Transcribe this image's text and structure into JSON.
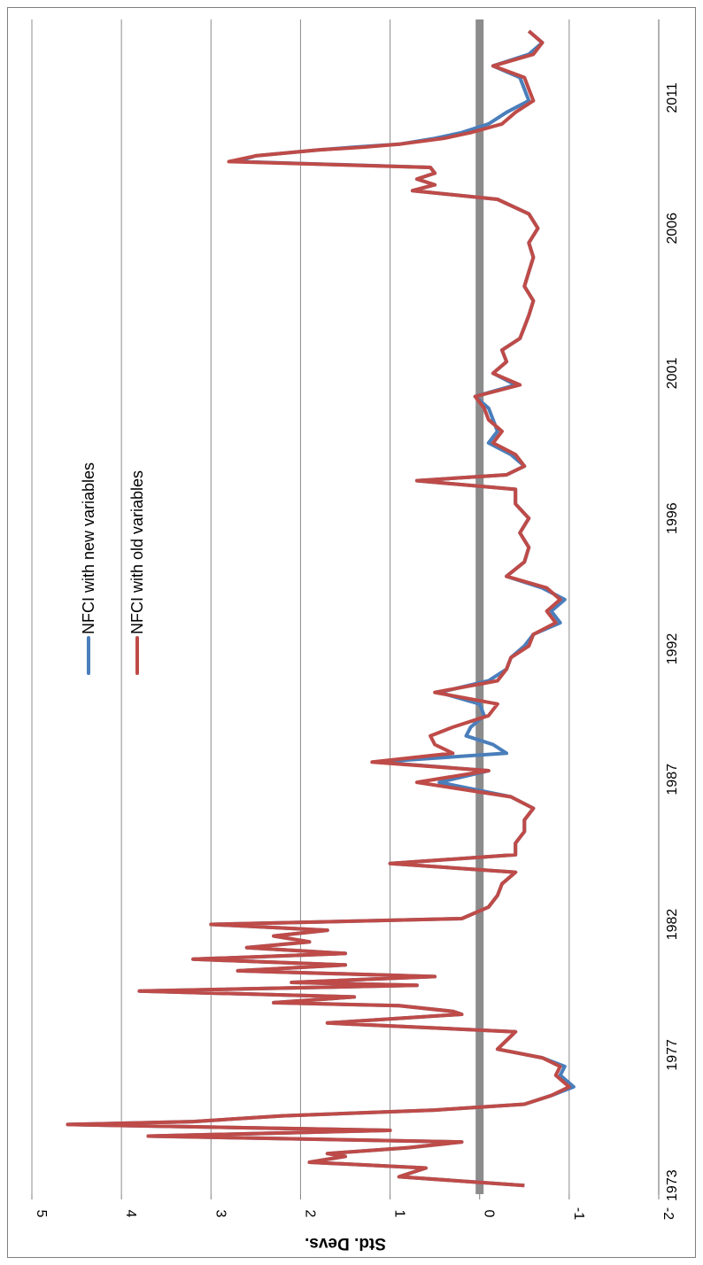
{
  "chart_data": {
    "type": "line",
    "orientation": "rotated-90-cw",
    "title": "",
    "ylabel": "Std. Devs.",
    "xlabel": "",
    "ylim": [
      -2,
      5
    ],
    "y_ticks": [
      "5",
      "4",
      "3",
      "2",
      "1",
      "0",
      "-1",
      "-2"
    ],
    "x_tick_labels": [
      "1973",
      "1977",
      "1982",
      "1987",
      "1992",
      "1996",
      "2001",
      "2006",
      "2011"
    ],
    "x_tick_years": [
      1973,
      1977.5,
      1982,
      1987,
      1991.5,
      1996,
      2001,
      2006,
      2010.5
    ],
    "grid": true,
    "legend_position": "top-left",
    "series": [
      {
        "name": "NFCI with new variables",
        "color": "#4a7ebb",
        "x": [
          1973.0,
          1973.3,
          1973.6,
          1973.8,
          1974.0,
          1974.1,
          1974.3,
          1974.5,
          1974.7,
          1974.9,
          1975.1,
          1975.2,
          1975.4,
          1975.6,
          1975.8,
          1976.1,
          1976.4,
          1976.8,
          1977.1,
          1977.4,
          1977.7,
          1978.0,
          1978.3,
          1978.6,
          1978.9,
          1979.0,
          1979.2,
          1979.3,
          1979.5,
          1979.7,
          1979.9,
          1980.0,
          1980.2,
          1980.4,
          1980.6,
          1980.8,
          1981.0,
          1981.2,
          1981.4,
          1981.6,
          1981.8,
          1982.0,
          1982.2,
          1982.6,
          1983.0,
          1983.4,
          1983.8,
          1984.1,
          1984.4,
          1984.8,
          1985.2,
          1985.6,
          1986.0,
          1986.4,
          1986.9,
          1987.3,
          1987.6,
          1987.9,
          1988.2,
          1988.5,
          1988.8,
          1989.2,
          1989.6,
          1990.0,
          1990.4,
          1990.8,
          1991.2,
          1991.6,
          1992.0,
          1992.4,
          1992.8,
          1993.2,
          1993.6,
          1994.0,
          1994.5,
          1995.0,
          1995.5,
          1996.0,
          1996.5,
          1997.0,
          1997.3,
          1997.5,
          1997.8,
          1998.2,
          1998.6,
          1999.0,
          1999.4,
          1999.8,
          2000.2,
          2000.6,
          2001.0,
          2001.4,
          2001.8,
          2002.2,
          2002.6,
          2003.0,
          2003.5,
          2004.0,
          2004.5,
          2005.0,
          2005.5,
          2006.0,
          2006.5,
          2007.0,
          2007.3,
          2007.5,
          2007.7,
          2007.9,
          2008.1,
          2008.3,
          2008.5,
          2008.7,
          2008.8,
          2008.9,
          2009.1,
          2009.3,
          2009.6,
          2010.0,
          2010.4,
          2010.8,
          2011.2,
          2011.6,
          2012.0,
          2012.4,
          2012.8
        ],
        "values": [
          -0.5,
          0.9,
          0.6,
          1.9,
          1.5,
          1.7,
          0.8,
          0.2,
          3.7,
          1.0,
          4.6,
          3.2,
          2.2,
          0.5,
          -0.5,
          -0.8,
          -1.05,
          -0.9,
          -0.95,
          -0.7,
          -0.2,
          -0.3,
          -0.4,
          1.7,
          0.2,
          0.3,
          0.9,
          2.3,
          1.4,
          3.8,
          0.7,
          2.1,
          0.5,
          2.7,
          1.5,
          3.2,
          1.5,
          2.6,
          1.9,
          2.3,
          1.7,
          3.0,
          0.2,
          -0.1,
          -0.2,
          -0.25,
          -0.4,
          1.0,
          -0.4,
          -0.4,
          -0.5,
          -0.5,
          -0.6,
          -0.35,
          0.45,
          -0.1,
          1.15,
          -0.3,
          -0.15,
          0.15,
          0.1,
          -0.05,
          0.0,
          0.45,
          -0.1,
          -0.3,
          -0.35,
          -0.5,
          -0.6,
          -0.9,
          -0.8,
          -0.95,
          -0.7,
          -0.3,
          -0.5,
          -0.55,
          -0.45,
          -0.55,
          -0.4,
          -0.4,
          0.7,
          -0.3,
          -0.5,
          -0.35,
          -0.1,
          -0.2,
          -0.15,
          -0.1,
          0.05,
          -0.4,
          -0.15,
          -0.3,
          -0.25,
          -0.45,
          -0.5,
          -0.55,
          -0.6,
          -0.5,
          -0.55,
          -0.6,
          -0.55,
          -0.65,
          -0.55,
          -0.2,
          0.75,
          0.5,
          0.7,
          0.5,
          0.55,
          2.7,
          2.5,
          1.8,
          1.4,
          0.9,
          0.5,
          0.2,
          -0.1,
          -0.3,
          -0.55,
          -0.5,
          -0.45,
          -0.15,
          -0.55,
          -0.7,
          -0.55
        ]
      },
      {
        "name": "NFCI with old variables",
        "color": "#be4b48",
        "x": [
          1973.0,
          1973.3,
          1973.6,
          1973.8,
          1974.0,
          1974.1,
          1974.3,
          1974.5,
          1974.7,
          1974.9,
          1975.1,
          1975.2,
          1975.4,
          1975.6,
          1975.8,
          1976.1,
          1976.4,
          1976.8,
          1977.1,
          1977.4,
          1977.7,
          1978.0,
          1978.3,
          1978.6,
          1978.9,
          1979.0,
          1979.2,
          1979.3,
          1979.5,
          1979.7,
          1979.9,
          1980.0,
          1980.2,
          1980.4,
          1980.6,
          1980.8,
          1981.0,
          1981.2,
          1981.4,
          1981.6,
          1981.8,
          1982.0,
          1982.2,
          1982.6,
          1983.0,
          1983.4,
          1983.8,
          1984.1,
          1984.4,
          1984.8,
          1985.2,
          1985.6,
          1986.0,
          1986.4,
          1986.9,
          1987.3,
          1987.6,
          1987.9,
          1988.2,
          1988.5,
          1988.8,
          1989.2,
          1989.6,
          1990.0,
          1990.4,
          1990.8,
          1991.2,
          1991.6,
          1992.0,
          1992.4,
          1992.8,
          1993.2,
          1993.6,
          1994.0,
          1994.5,
          1995.0,
          1995.5,
          1996.0,
          1996.5,
          1997.0,
          1997.3,
          1997.5,
          1997.8,
          1998.2,
          1998.6,
          1999.0,
          1999.4,
          1999.8,
          2000.2,
          2000.6,
          2001.0,
          2001.4,
          2001.8,
          2002.2,
          2002.6,
          2003.0,
          2003.5,
          2004.0,
          2004.5,
          2005.0,
          2005.5,
          2006.0,
          2006.5,
          2007.0,
          2007.3,
          2007.5,
          2007.7,
          2007.9,
          2008.1,
          2008.3,
          2008.5,
          2008.7,
          2008.8,
          2008.9,
          2009.1,
          2009.3,
          2009.6,
          2010.0,
          2010.4,
          2010.8,
          2011.2,
          2011.6,
          2012.0,
          2012.4,
          2012.8
        ],
        "values": [
          -0.5,
          0.9,
          0.6,
          1.9,
          1.5,
          1.7,
          0.8,
          0.2,
          3.7,
          1.0,
          4.6,
          3.2,
          2.2,
          0.5,
          -0.5,
          -0.8,
          -1.0,
          -0.85,
          -0.9,
          -0.7,
          -0.2,
          -0.3,
          -0.4,
          1.7,
          0.2,
          0.3,
          0.9,
          2.3,
          1.4,
          3.8,
          0.7,
          2.1,
          0.5,
          2.7,
          1.5,
          3.2,
          1.5,
          2.6,
          1.9,
          2.3,
          1.7,
          3.0,
          0.2,
          -0.1,
          -0.2,
          -0.25,
          -0.4,
          1.0,
          -0.4,
          -0.4,
          -0.5,
          -0.5,
          -0.6,
          -0.35,
          0.7,
          -0.1,
          1.2,
          0.3,
          0.5,
          0.55,
          0.3,
          -0.1,
          -0.2,
          0.5,
          -0.2,
          -0.3,
          -0.35,
          -0.55,
          -0.6,
          -0.85,
          -0.75,
          -0.9,
          -0.75,
          -0.3,
          -0.5,
          -0.55,
          -0.45,
          -0.55,
          -0.4,
          -0.4,
          0.7,
          -0.3,
          -0.5,
          -0.4,
          -0.15,
          -0.25,
          -0.1,
          -0.05,
          0.05,
          -0.45,
          -0.15,
          -0.3,
          -0.25,
          -0.45,
          -0.5,
          -0.55,
          -0.6,
          -0.5,
          -0.55,
          -0.6,
          -0.55,
          -0.65,
          -0.55,
          -0.2,
          0.75,
          0.5,
          0.7,
          0.5,
          0.55,
          2.8,
          2.5,
          1.8,
          1.3,
          0.9,
          0.4,
          0.1,
          -0.25,
          -0.4,
          -0.6,
          -0.55,
          -0.5,
          -0.15,
          -0.6,
          -0.7,
          -0.55
        ]
      }
    ]
  }
}
